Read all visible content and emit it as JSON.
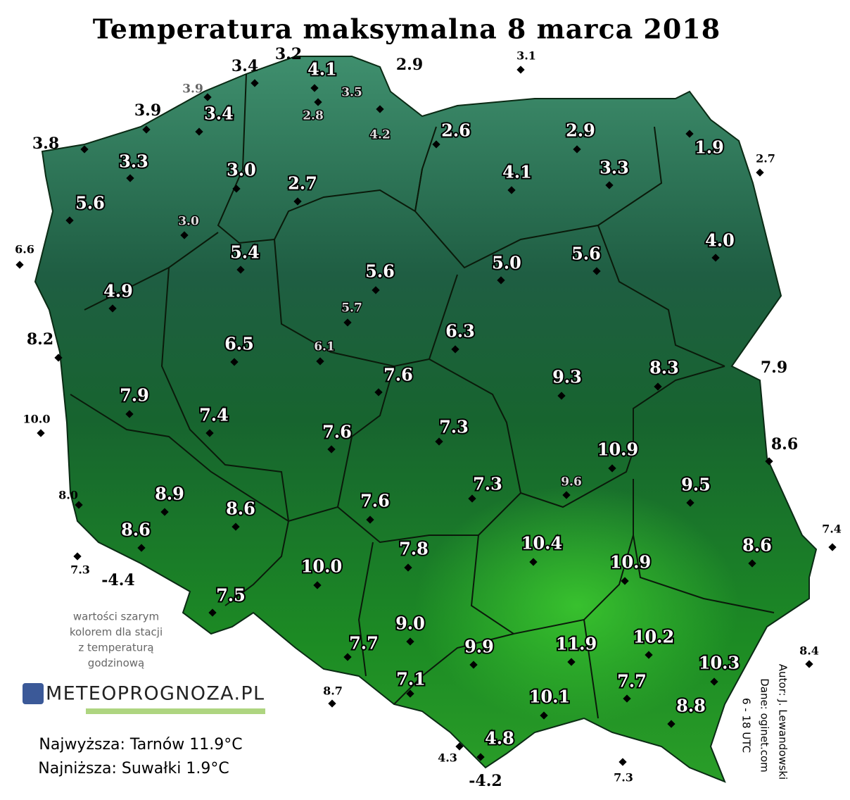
{
  "title": "Temperatura maksymalna 8 marca 2018",
  "stations": [
    "3.4",
    "3.2",
    "2.9",
    "3.1",
    "3.9",
    "3.8",
    "6.6",
    "8.2",
    "10.0",
    "8.0",
    "7.3",
    "-4.4",
    "8.7",
    "4.3",
    "-4.2",
    "7.3",
    "8.4",
    "7.4",
    "8.6",
    "7.9",
    "2.7",
    "4.1",
    "3.4",
    "3.3",
    "3.0",
    "2.7",
    "5.6",
    "2.6",
    "2.9",
    "1.9",
    "4.1",
    "3.3",
    "5.4",
    "4.9",
    "4.0",
    "5.6",
    "5.0",
    "5.6",
    "6.5",
    "6.3",
    "7.6",
    "9.3",
    "8.3",
    "7.9",
    "7.4",
    "7.6",
    "7.3",
    "10.9",
    "9.5",
    "8.9",
    "8.6",
    "7.3",
    "7.6",
    "8.6",
    "7.8",
    "10.4",
    "10.9",
    "8.6",
    "10.0",
    "7.5",
    "9.0",
    "7.7",
    "9.9",
    "11.9",
    "10.2",
    "10.3",
    "7.1",
    "7.7",
    "10.1",
    "8.8",
    "4.8"
  ],
  "hourly_stations": [
    "3.9",
    "3.5",
    "2.8",
    "4.2",
    "3.0",
    "5.7",
    "6.1",
    "9.6"
  ],
  "note": [
    "wartości szarym",
    "kolorem dla stacji",
    "z temperaturą",
    "godzinową"
  ],
  "logo": "METEOPROGNOZA.PL",
  "stats": [
    "Najwyższa: Tarnów 11.9°C",
    "Najniższa: Suwałki 1.9°C"
  ],
  "credits": [
    "Autor: J. Lewandowski",
    "Dane: oginet.com",
    "6 - 18 UTC"
  ]
}
